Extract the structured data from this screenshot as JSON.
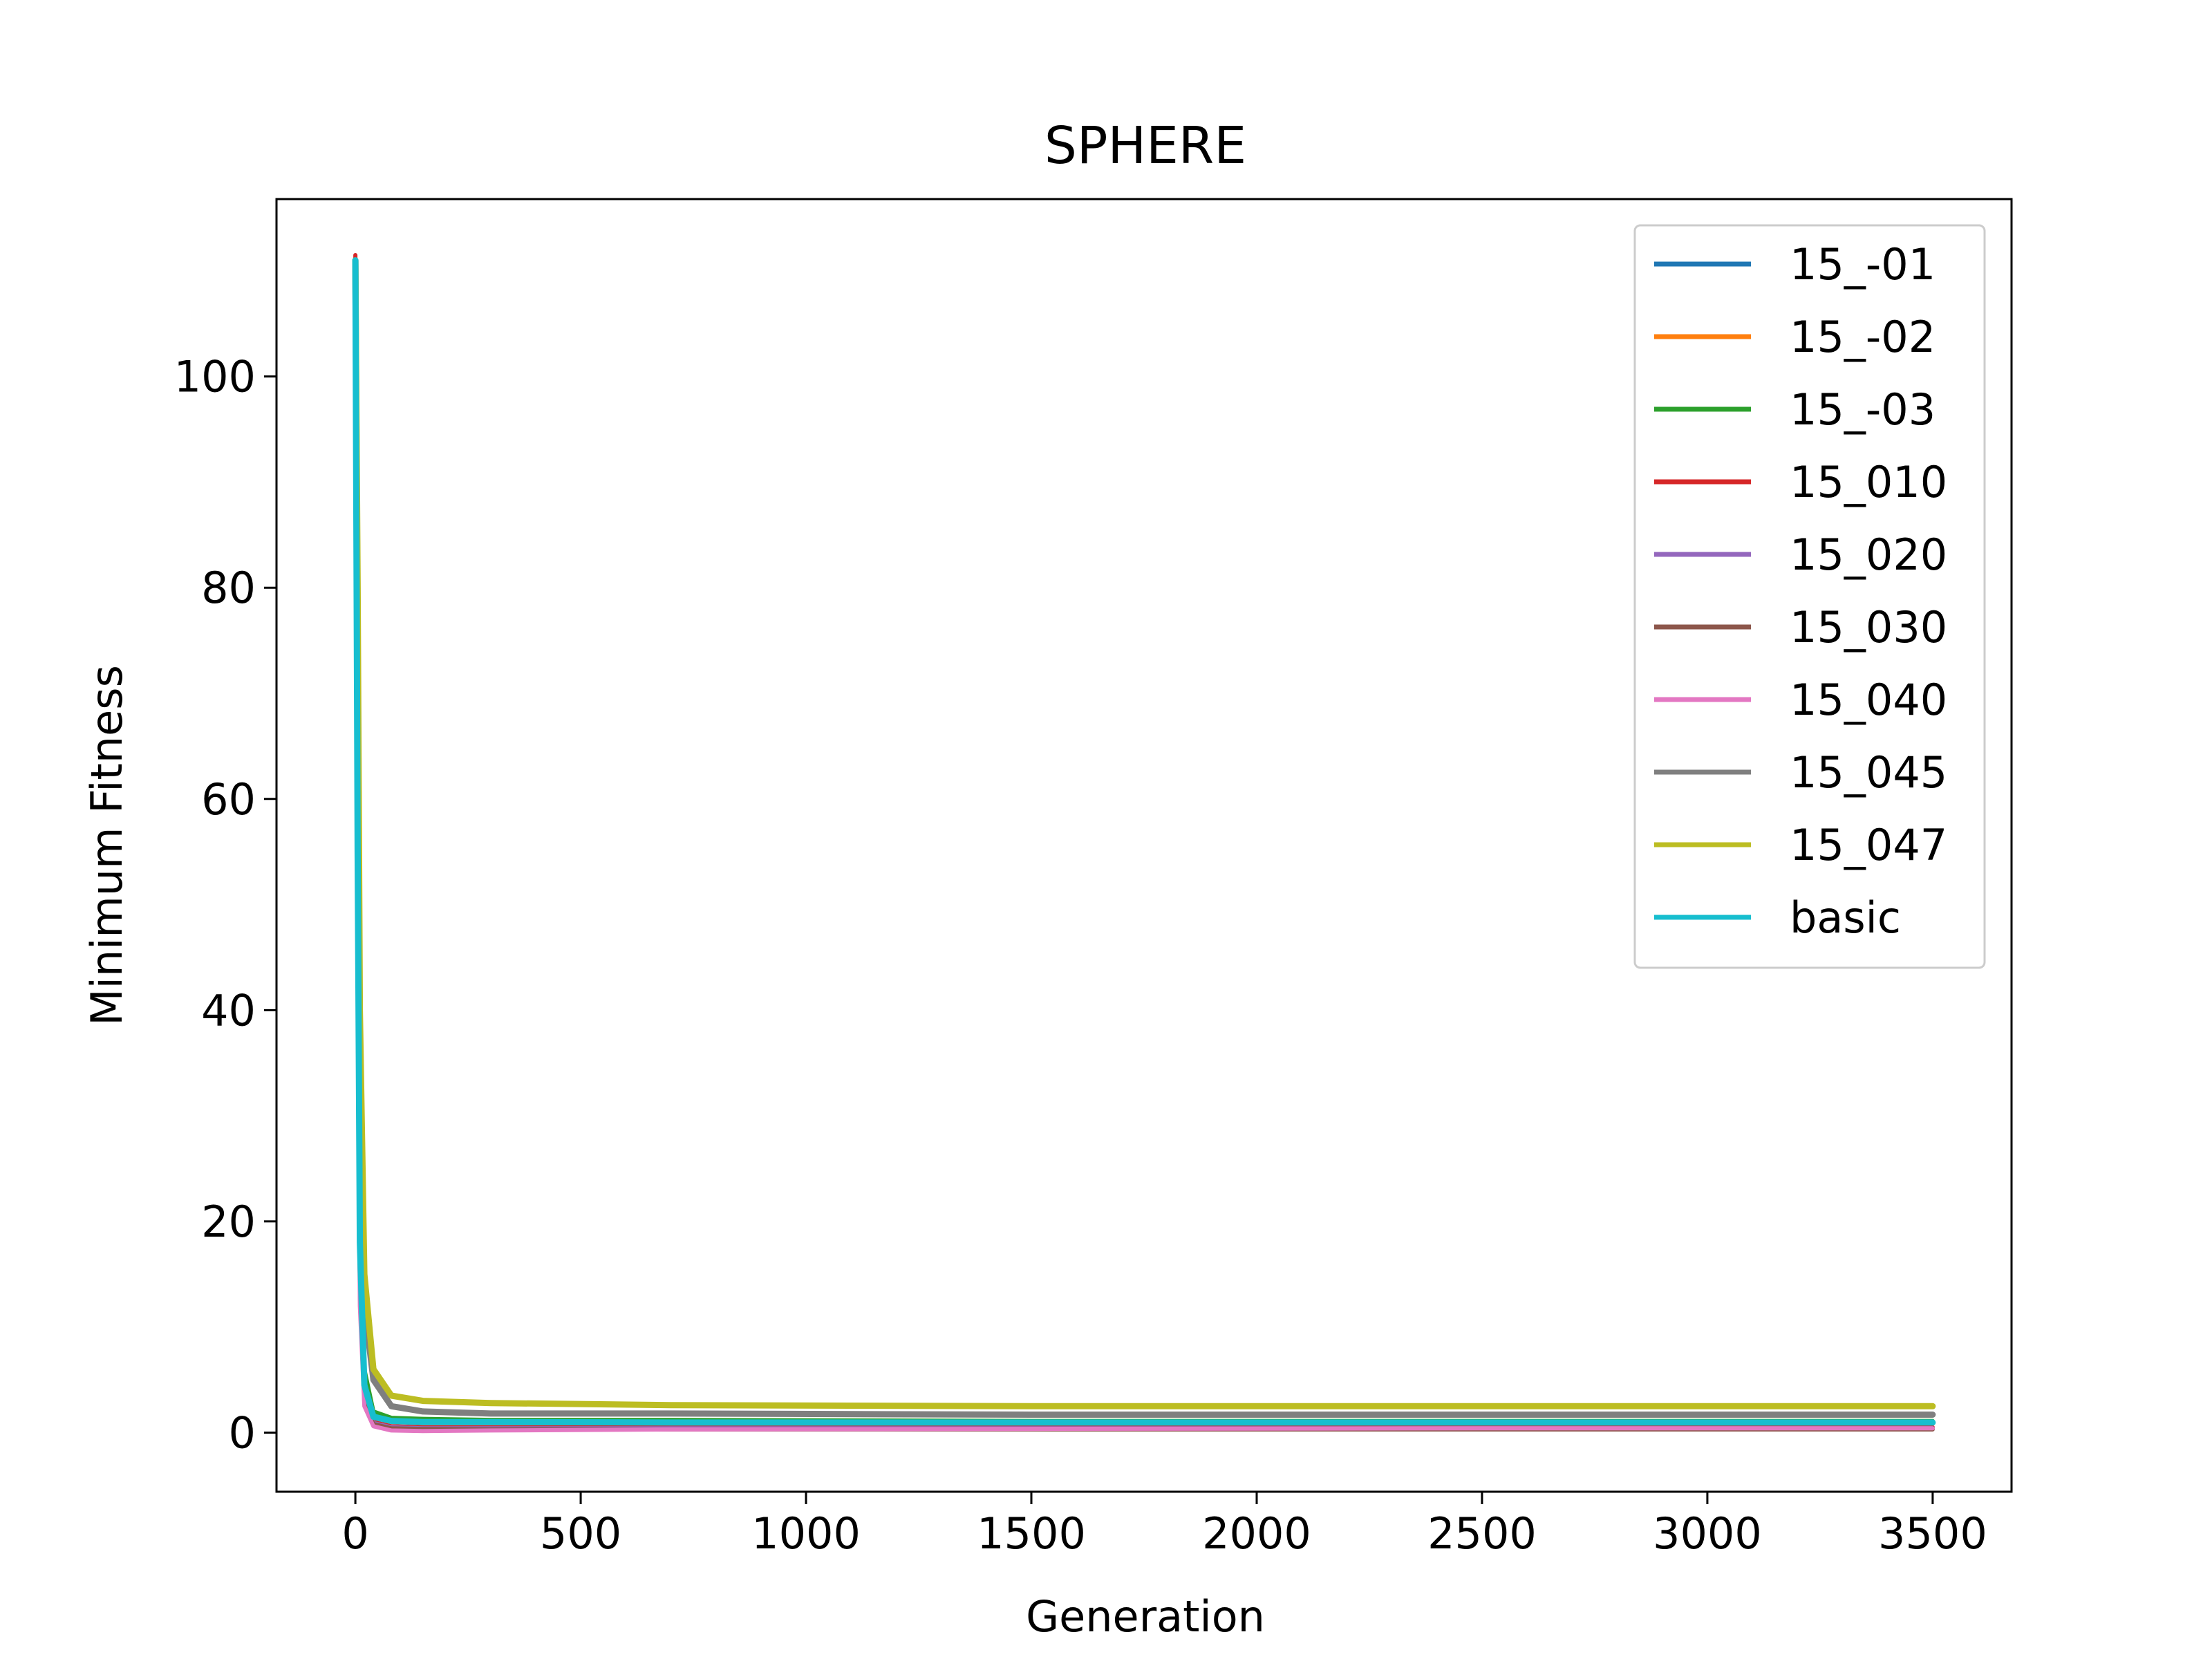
{
  "chart_data": {
    "type": "line",
    "title": "SPHERE",
    "xlabel": "Generation",
    "ylabel": "Minimum Fitness",
    "xlim": [
      -175,
      3675
    ],
    "ylim": [
      -5.6,
      116.8
    ],
    "xticks": [
      0,
      500,
      1000,
      1500,
      2000,
      2500,
      3000,
      3500
    ],
    "yticks": [
      0,
      20,
      40,
      60,
      80,
      100
    ],
    "grid": false,
    "legend_position": "top-right",
    "series": [
      {
        "name": "15_-01",
        "color": "#1f77b4",
        "x": [
          0,
          5,
          10,
          20,
          40,
          80,
          150,
          300,
          700,
          1500,
          2500,
          3500
        ],
        "y": [
          111,
          60,
          20,
          5,
          1.8,
          1.2,
          1.1,
          1.05,
          1.0,
          1.0,
          1.0,
          1.0
        ]
      },
      {
        "name": "15_-02",
        "color": "#ff7f0e",
        "x": [
          0,
          5,
          10,
          20,
          40,
          80,
          150,
          300,
          700,
          1500,
          2500,
          3500
        ],
        "y": [
          111,
          58,
          19,
          5,
          1.7,
          1.1,
          1.0,
          0.95,
          0.9,
          0.9,
          0.9,
          0.9
        ]
      },
      {
        "name": "15_-03",
        "color": "#2ca02c",
        "x": [
          0,
          5,
          10,
          20,
          40,
          80,
          150,
          300,
          700,
          1500,
          2500,
          3500
        ],
        "y": [
          111,
          62,
          21,
          6,
          2.0,
          1.4,
          1.3,
          1.2,
          1.2,
          1.1,
          1.1,
          1.1
        ]
      },
      {
        "name": "15_010",
        "color": "#d62728",
        "x": [
          0,
          5,
          10,
          20,
          40,
          80,
          150,
          300,
          700,
          1500,
          2500,
          3500
        ],
        "y": [
          111.5,
          50,
          15,
          3.5,
          1.0,
          0.6,
          0.5,
          0.5,
          0.5,
          0.5,
          0.5,
          0.5
        ]
      },
      {
        "name": "15_020",
        "color": "#9467bd",
        "x": [
          0,
          5,
          10,
          20,
          40,
          80,
          150,
          300,
          700,
          1500,
          2500,
          3500
        ],
        "y": [
          111,
          48,
          14,
          3.0,
          0.9,
          0.5,
          0.4,
          0.4,
          0.4,
          0.4,
          0.4,
          0.4
        ]
      },
      {
        "name": "15_030",
        "color": "#8c564b",
        "x": [
          0,
          5,
          10,
          20,
          40,
          80,
          150,
          300,
          700,
          1500,
          2500,
          3500
        ],
        "y": [
          111,
          46,
          13,
          2.8,
          0.8,
          0.4,
          0.35,
          0.3,
          0.3,
          0.3,
          0.3,
          0.3
        ]
      },
      {
        "name": "15_040",
        "color": "#e377c2",
        "x": [
          0,
          5,
          10,
          20,
          40,
          80,
          150,
          300,
          700,
          1500,
          2500,
          3500
        ],
        "y": [
          111,
          45,
          12,
          2.5,
          0.6,
          0.2,
          0.15,
          0.2,
          0.3,
          0.35,
          0.4,
          0.4
        ]
      },
      {
        "name": "15_045",
        "color": "#7f7f7f",
        "x": [
          0,
          5,
          10,
          20,
          40,
          80,
          150,
          300,
          700,
          1500,
          2500,
          3500
        ],
        "y": [
          111,
          75,
          35,
          12,
          5.0,
          2.5,
          2.0,
          1.8,
          1.8,
          1.7,
          1.7,
          1.7
        ]
      },
      {
        "name": "15_047",
        "color": "#bcbd22",
        "x": [
          0,
          5,
          10,
          20,
          40,
          80,
          150,
          300,
          700,
          1500,
          2500,
          3500
        ],
        "y": [
          111,
          80,
          40,
          15,
          6.0,
          3.5,
          3.0,
          2.8,
          2.6,
          2.5,
          2.5,
          2.5
        ]
      },
      {
        "name": "basic",
        "color": "#17becf",
        "x": [
          0,
          5,
          10,
          20,
          40,
          80,
          150,
          300,
          700,
          1500,
          2500,
          3500
        ],
        "y": [
          111,
          55,
          18,
          4.5,
          1.5,
          1.1,
          1.0,
          1.0,
          0.95,
          0.95,
          0.95,
          0.95
        ]
      }
    ]
  }
}
